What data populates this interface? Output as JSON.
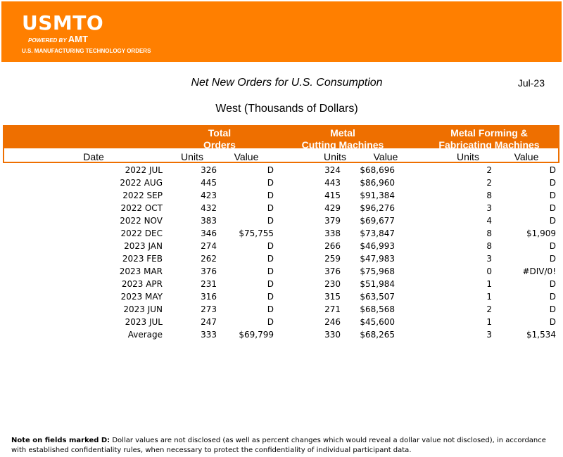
{
  "logo": {
    "name": "USMTO",
    "powered_by": "POWERED BY",
    "amt": "AMT",
    "tagline": "U.S. MANUFACTURING TECHNOLOGY ORDERS"
  },
  "report": {
    "title": "Net New Orders for U.S. Consumption",
    "date": "Jul-23",
    "subtitle": "West (Thousands of Dollars)"
  },
  "groups": {
    "total": [
      "Total",
      "Orders"
    ],
    "cutting": [
      "Metal",
      "Cutting Machines"
    ],
    "forming": [
      "Metal Forming &",
      "Fabricating Machines"
    ]
  },
  "columns": [
    "Date",
    "Units",
    "Value",
    "Units",
    "Value",
    "Units",
    "Value"
  ],
  "rows": [
    [
      "2022 JUL",
      "326",
      "D",
      "324",
      "$68,696",
      "2",
      "D"
    ],
    [
      "2022 AUG",
      "445",
      "D",
      "443",
      "$86,960",
      "2",
      "D"
    ],
    [
      "2022 SEP",
      "423",
      "D",
      "415",
      "$91,384",
      "8",
      "D"
    ],
    [
      "2022 OCT",
      "432",
      "D",
      "429",
      "$96,276",
      "3",
      "D"
    ],
    [
      "2022 NOV",
      "383",
      "D",
      "379",
      "$69,677",
      "4",
      "D"
    ],
    [
      "2022 DEC",
      "346",
      "$75,755",
      "338",
      "$73,847",
      "8",
      "$1,909"
    ],
    [
      "2023 JAN",
      "274",
      "D",
      "266",
      "$46,993",
      "8",
      "D"
    ],
    [
      "2023 FEB",
      "262",
      "D",
      "259",
      "$47,983",
      "3",
      "D"
    ],
    [
      "2023 MAR",
      "376",
      "D",
      "376",
      "$75,968",
      "0",
      "#DIV/0!"
    ],
    [
      "2023 APR",
      "231",
      "D",
      "230",
      "$51,984",
      "1",
      "D"
    ],
    [
      "2023 MAY",
      "316",
      "D",
      "315",
      "$63,507",
      "1",
      "D"
    ],
    [
      "2023 JUN",
      "273",
      "D",
      "271",
      "$68,568",
      "2",
      "D"
    ],
    [
      "2023 JUL",
      "247",
      "D",
      "246",
      "$45,600",
      "1",
      "D"
    ],
    [
      "Average",
      "333",
      "$69,799",
      "330",
      "$68,265",
      "3",
      "$1,534"
    ]
  ],
  "note": {
    "label": "Note on fields marked D:",
    "text": " Dollar values are not disclosed (as well as percent changes which would reveal a dollar value not disclosed), in accordance with established confidentiality rules, when necessary to protect the confidentiality of individual participant data."
  }
}
